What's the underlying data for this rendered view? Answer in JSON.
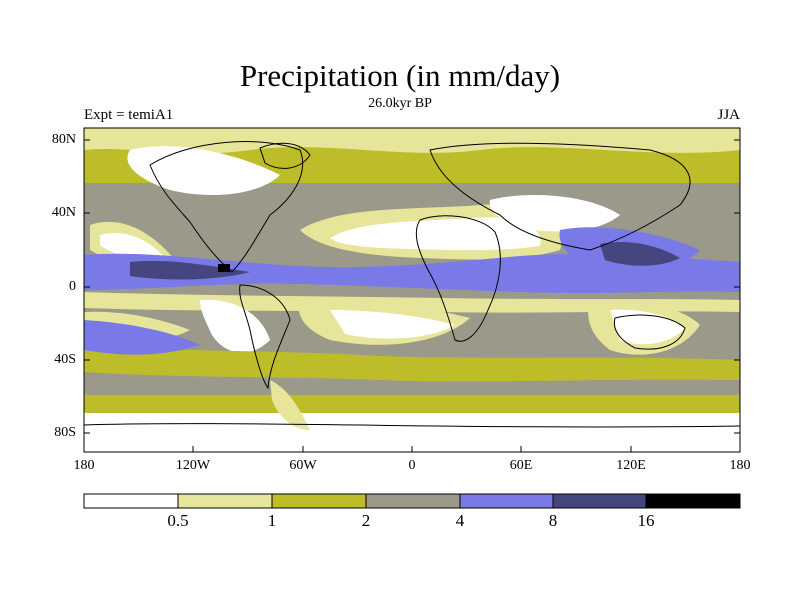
{
  "title": "Precipitation (in mm/day)",
  "subtitle": "26.0kyr BP",
  "left_label": "Expt = temiA1",
  "right_label": "JJA",
  "lat_labels": [
    "80N",
    "40N",
    "0",
    "40S",
    "80S"
  ],
  "lon_labels": [
    "180",
    "120W",
    "60W",
    "0",
    "60E",
    "120E",
    "180"
  ],
  "colorbar": {
    "levels": [
      "0.5",
      "1",
      "2",
      "4",
      "8",
      "16"
    ],
    "colors": [
      "#ffffff",
      "#e6e59a",
      "#bdbd2a",
      "#9b9a8a",
      "#7a79e8",
      "#45457f",
      "#000000"
    ]
  }
}
